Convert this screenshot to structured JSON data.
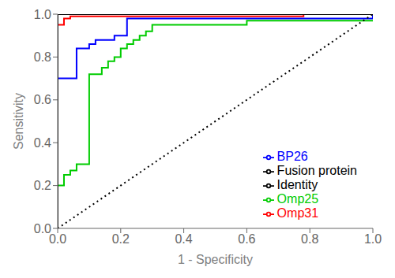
{
  "chart_data": {
    "type": "line",
    "title": "",
    "xlabel": "1 - Specificity",
    "ylabel": "Sensitivity",
    "xlim": [
      0.0,
      1.0
    ],
    "ylim": [
      0.0,
      1.0
    ],
    "xticks": [
      {
        "value": 0.0,
        "label": "0.0"
      },
      0.2,
      0.4,
      0.6,
      0.8,
      {
        "value": 1.0,
        "label": "1.0"
      }
    ],
    "yticks": [
      {
        "value": 0.0,
        "label": "0.0"
      },
      0.2,
      0.4,
      0.6,
      0.8,
      {
        "value": 1.0,
        "label": "1.0"
      }
    ],
    "grid": false,
    "legend": "lower right",
    "series": [
      {
        "name": "Omp25",
        "color": "#00cc00",
        "type": "step",
        "line_style": "solid",
        "x": [
          0.0,
          0.0,
          0.0,
          0.02,
          0.02,
          0.04,
          0.04,
          0.06,
          0.06,
          0.08,
          0.1,
          0.1,
          0.12,
          0.14,
          0.16,
          0.18,
          0.2,
          0.22,
          0.24,
          0.26,
          0.28,
          0.3,
          0.6,
          0.6,
          1.0
        ],
        "values": [
          0.0,
          0.14,
          0.2,
          0.2,
          0.25,
          0.25,
          0.27,
          0.27,
          0.3,
          0.3,
          0.3,
          0.72,
          0.72,
          0.75,
          0.78,
          0.8,
          0.84,
          0.86,
          0.88,
          0.9,
          0.92,
          0.95,
          0.95,
          0.97,
          0.97
        ]
      },
      {
        "name": "BP26",
        "color": "#0000ff",
        "type": "step",
        "line_style": "solid",
        "x": [
          0.0,
          0.0,
          0.0,
          0.02,
          0.04,
          0.06,
          0.06,
          0.08,
          0.1,
          0.12,
          0.14,
          0.16,
          0.18,
          0.2,
          0.22,
          0.22,
          0.8,
          1.0
        ],
        "values": [
          0.0,
          0.57,
          0.7,
          0.7,
          0.7,
          0.7,
          0.84,
          0.84,
          0.86,
          0.88,
          0.88,
          0.88,
          0.9,
          0.9,
          0.9,
          0.98,
          0.98,
          1.0
        ]
      },
      {
        "name": "Omp31",
        "color": "#ff0000",
        "type": "step",
        "line_style": "solid",
        "x": [
          0.0,
          0.0,
          0.0,
          0.0,
          0.02,
          0.02,
          0.04,
          0.04,
          0.78,
          0.78,
          0.8,
          1.0
        ],
        "values": [
          0.0,
          0.75,
          0.77,
          0.95,
          0.95,
          0.98,
          0.98,
          0.99,
          0.99,
          1.0,
          1.0,
          1.0
        ]
      },
      {
        "name": "Fusion protein",
        "color": "#000000",
        "type": "line",
        "line_style": "solid",
        "x": [
          0.0,
          0.0,
          1.0
        ],
        "values": [
          0.0,
          1.0,
          1.0
        ]
      },
      {
        "name": "Identity",
        "color": "#000000",
        "type": "line",
        "line_style": "dotted",
        "x": [
          0.0,
          1.0
        ],
        "values": [
          0.0,
          1.0
        ]
      }
    ]
  }
}
